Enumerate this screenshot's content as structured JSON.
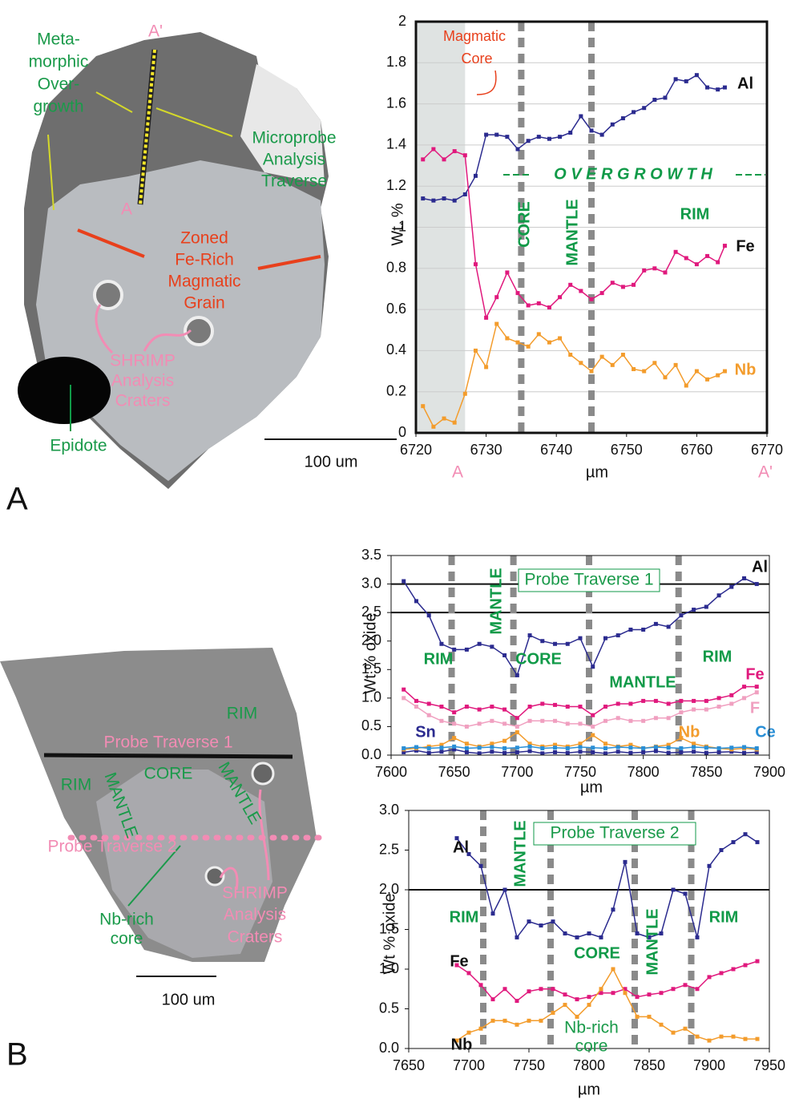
{
  "panels": [
    {
      "letter": "A",
      "labels": {
        "end_top": "A'",
        "end_bottom": "A",
        "overgrowth": [
          "Meta-",
          "morphic",
          "Over-",
          "growth"
        ],
        "traverse": [
          "Microprobe",
          "Analysis",
          "Traverse"
        ],
        "grain": [
          "Zoned",
          "Fe-Rich",
          "Magmatic",
          "Grain"
        ],
        "craters": [
          "SHRIMP",
          "Analysis",
          "Craters"
        ],
        "epidote": "Epidote",
        "scale": "100 um"
      }
    },
    {
      "letter": "B",
      "labels": {
        "rim_top": "RIM",
        "traverse1": "Probe Traverse 1",
        "rim_left": "RIM",
        "mantle_left": "MANTLE",
        "core": "CORE",
        "mantle_right": "MANTLE",
        "traverse2": "Probe Traverse 2",
        "nb_core": [
          "Nb-rich",
          "core"
        ],
        "craters": [
          "SHRIMP",
          "Analysis",
          "Craters"
        ],
        "scale": "100 um"
      }
    }
  ],
  "chart_data": [
    {
      "type": "line",
      "ylabel": "Wt. %",
      "xlabel": "µm",
      "xlim": [
        6720,
        6770
      ],
      "xticks": [
        6720,
        6730,
        6740,
        6750,
        6760,
        6770
      ],
      "ylim": [
        0,
        2
      ],
      "yticks": [
        0,
        0.2,
        0.4,
        0.6,
        0.8,
        1,
        1.2,
        1.4,
        1.6,
        1.8,
        2
      ],
      "grid": true,
      "shaded_range": [
        6720,
        6727
      ],
      "zone_boundaries": [
        6735,
        6745
      ],
      "reference_lines": [],
      "annotations": [
        "Magmatic",
        "Core",
        "CORE",
        "MANTLE",
        "RIM",
        "O V E R G R O W T H",
        "A",
        "A'"
      ],
      "x": [
        6721,
        6722.5,
        6724,
        6725.5,
        6727,
        6728.5,
        6730,
        6731.5,
        6733,
        6734.5,
        6736,
        6737.5,
        6739,
        6740.5,
        6742,
        6743.5,
        6745,
        6746.5,
        6748,
        6749.5,
        6751,
        6752.5,
        6754,
        6755.5,
        6757,
        6758.5,
        6760,
        6761.5,
        6763,
        6764
      ],
      "series": [
        {
          "name": "Al",
          "color": "#2b2b8f",
          "values": [
            1.14,
            1.13,
            1.14,
            1.13,
            1.16,
            1.25,
            1.45,
            1.45,
            1.44,
            1.38,
            1.42,
            1.44,
            1.43,
            1.44,
            1.46,
            1.54,
            1.47,
            1.45,
            1.5,
            1.53,
            1.56,
            1.58,
            1.62,
            1.63,
            1.72,
            1.71,
            1.74,
            1.68,
            1.67,
            1.68
          ]
        },
        {
          "name": "Fe",
          "color": "#e0197d",
          "values": [
            1.33,
            1.38,
            1.33,
            1.37,
            1.35,
            0.82,
            0.56,
            0.66,
            0.78,
            0.68,
            0.62,
            0.63,
            0.61,
            0.66,
            0.72,
            0.69,
            0.65,
            0.68,
            0.73,
            0.71,
            0.72,
            0.79,
            0.8,
            0.78,
            0.88,
            0.85,
            0.82,
            0.86,
            0.83,
            0.91
          ]
        },
        {
          "name": "Nb",
          "color": "#f39c2c",
          "values": [
            0.13,
            0.03,
            0.07,
            0.05,
            0.19,
            0.4,
            0.32,
            0.53,
            0.46,
            0.44,
            0.42,
            0.48,
            0.44,
            0.46,
            0.38,
            0.34,
            0.3,
            0.37,
            0.33,
            0.38,
            0.31,
            0.3,
            0.34,
            0.27,
            0.33,
            0.23,
            0.3,
            0.26,
            0.28,
            0.3
          ]
        }
      ]
    },
    {
      "type": "line",
      "ylabel": "Wt % oxide",
      "xlabel": "µm",
      "xlim": [
        7600,
        7900
      ],
      "xticks": [
        7600,
        7650,
        7700,
        7750,
        7800,
        7850,
        7900
      ],
      "ylim": [
        0,
        3.5
      ],
      "yticks": [
        {
          "value": 0,
          "label": "0.0"
        },
        0.5,
        {
          "value": 1,
          "label": "1.0"
        },
        1.5,
        {
          "value": 2,
          "label": "2.0"
        },
        2.5,
        {
          "value": 3,
          "label": "3.0"
        },
        3.5
      ],
      "grid": false,
      "zone_boundaries": [
        7648,
        7697,
        7757,
        7828
      ],
      "reference_lines": [
        2.5,
        3
      ],
      "annotations": [
        "Probe Traverse 1",
        "RIM",
        "MANTLE",
        "CORE",
        "MANTLE",
        "RIM"
      ],
      "x": [
        7610,
        7620,
        7630,
        7640,
        7650,
        7660,
        7670,
        7680,
        7690,
        7700,
        7710,
        7720,
        7730,
        7740,
        7750,
        7760,
        7770,
        7780,
        7790,
        7800,
        7810,
        7820,
        7830,
        7840,
        7850,
        7860,
        7870,
        7880,
        7890
      ],
      "series": [
        {
          "name": "Al",
          "color": "#2b2b8f",
          "values": [
            3.05,
            2.7,
            2.45,
            1.95,
            1.85,
            1.85,
            1.95,
            1.9,
            1.75,
            1.4,
            2.1,
            2,
            1.95,
            1.95,
            2.05,
            1.55,
            2.05,
            2.1,
            2.2,
            2.2,
            2.3,
            2.25,
            2.45,
            2.55,
            2.6,
            2.8,
            2.95,
            3.1,
            3
          ]
        },
        {
          "name": "Fe",
          "color": "#e0197d",
          "values": [
            1.15,
            0.95,
            0.9,
            0.85,
            0.75,
            0.85,
            0.8,
            0.85,
            0.8,
            0.65,
            0.85,
            0.9,
            0.88,
            0.85,
            0.85,
            0.7,
            0.85,
            0.9,
            0.9,
            0.95,
            0.95,
            0.9,
            0.95,
            0.95,
            0.95,
            1,
            1.05,
            1.2,
            1.2
          ]
        },
        {
          "name": "F",
          "color": "#f0a0c0",
          "values": [
            1,
            0.85,
            0.7,
            0.6,
            0.55,
            0.5,
            0.55,
            0.6,
            0.55,
            0.5,
            0.6,
            0.6,
            0.6,
            0.55,
            0.55,
            0.5,
            0.6,
            0.65,
            0.6,
            0.6,
            0.65,
            0.65,
            0.75,
            0.8,
            0.8,
            0.85,
            0.9,
            1,
            1.1
          ]
        },
        {
          "name": "Sn",
          "color": "#2b2b8f",
          "values": [
            0.05,
            0.08,
            0.04,
            0.06,
            0.1,
            0.05,
            0.03,
            0.06,
            0.04,
            0.05,
            0.07,
            0.03,
            0.05,
            0.04,
            0.06,
            0.05,
            0.03,
            0.06,
            0.04,
            0.05,
            0.07,
            0.04,
            0.05,
            0.06,
            0.04,
            0.05,
            0.06,
            0.04,
            0.05
          ]
        },
        {
          "name": "Nb",
          "color": "#f39c2c",
          "values": [
            0.1,
            0.12,
            0.15,
            0.18,
            0.3,
            0.2,
            0.15,
            0.2,
            0.25,
            0.4,
            0.2,
            0.15,
            0.18,
            0.15,
            0.2,
            0.35,
            0.2,
            0.15,
            0.18,
            0.12,
            0.15,
            0.18,
            0.3,
            0.2,
            0.15,
            0.12,
            0.1,
            0.12,
            0.1
          ]
        },
        {
          "name": "Ce",
          "color": "#2a8fd6",
          "values": [
            0.12,
            0.14,
            0.12,
            0.13,
            0.15,
            0.12,
            0.13,
            0.14,
            0.12,
            0.13,
            0.15,
            0.12,
            0.13,
            0.12,
            0.14,
            0.13,
            0.12,
            0.14,
            0.13,
            0.12,
            0.14,
            0.13,
            0.12,
            0.14,
            0.13,
            0.12,
            0.13,
            0.14,
            0.12
          ]
        }
      ]
    },
    {
      "type": "line",
      "ylabel": "Wt % oxide",
      "xlabel": "µm",
      "xlim": [
        7650,
        7950
      ],
      "xticks": [
        7650,
        7700,
        7750,
        7800,
        7850,
        7900,
        7950
      ],
      "ylim": [
        0,
        3
      ],
      "yticks": [
        {
          "value": 0,
          "label": "0.0"
        },
        0.5,
        {
          "value": 1,
          "label": "1.0"
        },
        1.5,
        {
          "value": 2,
          "label": "2.0"
        },
        2.5,
        {
          "value": 3,
          "label": "3.0"
        }
      ],
      "grid": false,
      "zone_boundaries": [
        7712,
        7768,
        7838,
        7885
      ],
      "reference_lines": [
        2
      ],
      "annotations": [
        "Probe Traverse 2",
        "RIM",
        "MANTLE",
        "CORE",
        "MANTLE",
        "RIM",
        "Nb-rich",
        "core"
      ],
      "x": [
        7690,
        7700,
        7710,
        7720,
        7730,
        7740,
        7750,
        7760,
        7770,
        7780,
        7790,
        7800,
        7810,
        7820,
        7830,
        7840,
        7850,
        7860,
        7870,
        7880,
        7890,
        7900,
        7910,
        7920,
        7930,
        7940
      ],
      "series": [
        {
          "name": "Al",
          "color": "#2b2b8f",
          "values": [
            2.65,
            2.45,
            2.3,
            1.7,
            2,
            1.4,
            1.6,
            1.55,
            1.6,
            1.45,
            1.4,
            1.45,
            1.4,
            1.75,
            2.35,
            1.45,
            1.4,
            1.45,
            2,
            1.95,
            1.4,
            2.3,
            2.5,
            2.6,
            2.7,
            2.6
          ]
        },
        {
          "name": "Fe",
          "color": "#e0197d",
          "values": [
            1.05,
            0.95,
            0.8,
            0.62,
            0.75,
            0.6,
            0.72,
            0.75,
            0.75,
            0.68,
            0.62,
            0.65,
            0.7,
            0.7,
            0.75,
            0.65,
            0.68,
            0.7,
            0.75,
            0.8,
            0.75,
            0.9,
            0.95,
            1,
            1.05,
            1.1
          ]
        },
        {
          "name": "Nb",
          "color": "#f39c2c",
          "values": [
            0.1,
            0.2,
            0.25,
            0.35,
            0.35,
            0.3,
            0.35,
            0.35,
            0.45,
            0.55,
            0.4,
            0.55,
            0.75,
            1,
            0.7,
            0.4,
            0.4,
            0.3,
            0.2,
            0.25,
            0.15,
            0.1,
            0.15,
            0.15,
            0.12,
            0.12
          ]
        }
      ]
    }
  ]
}
